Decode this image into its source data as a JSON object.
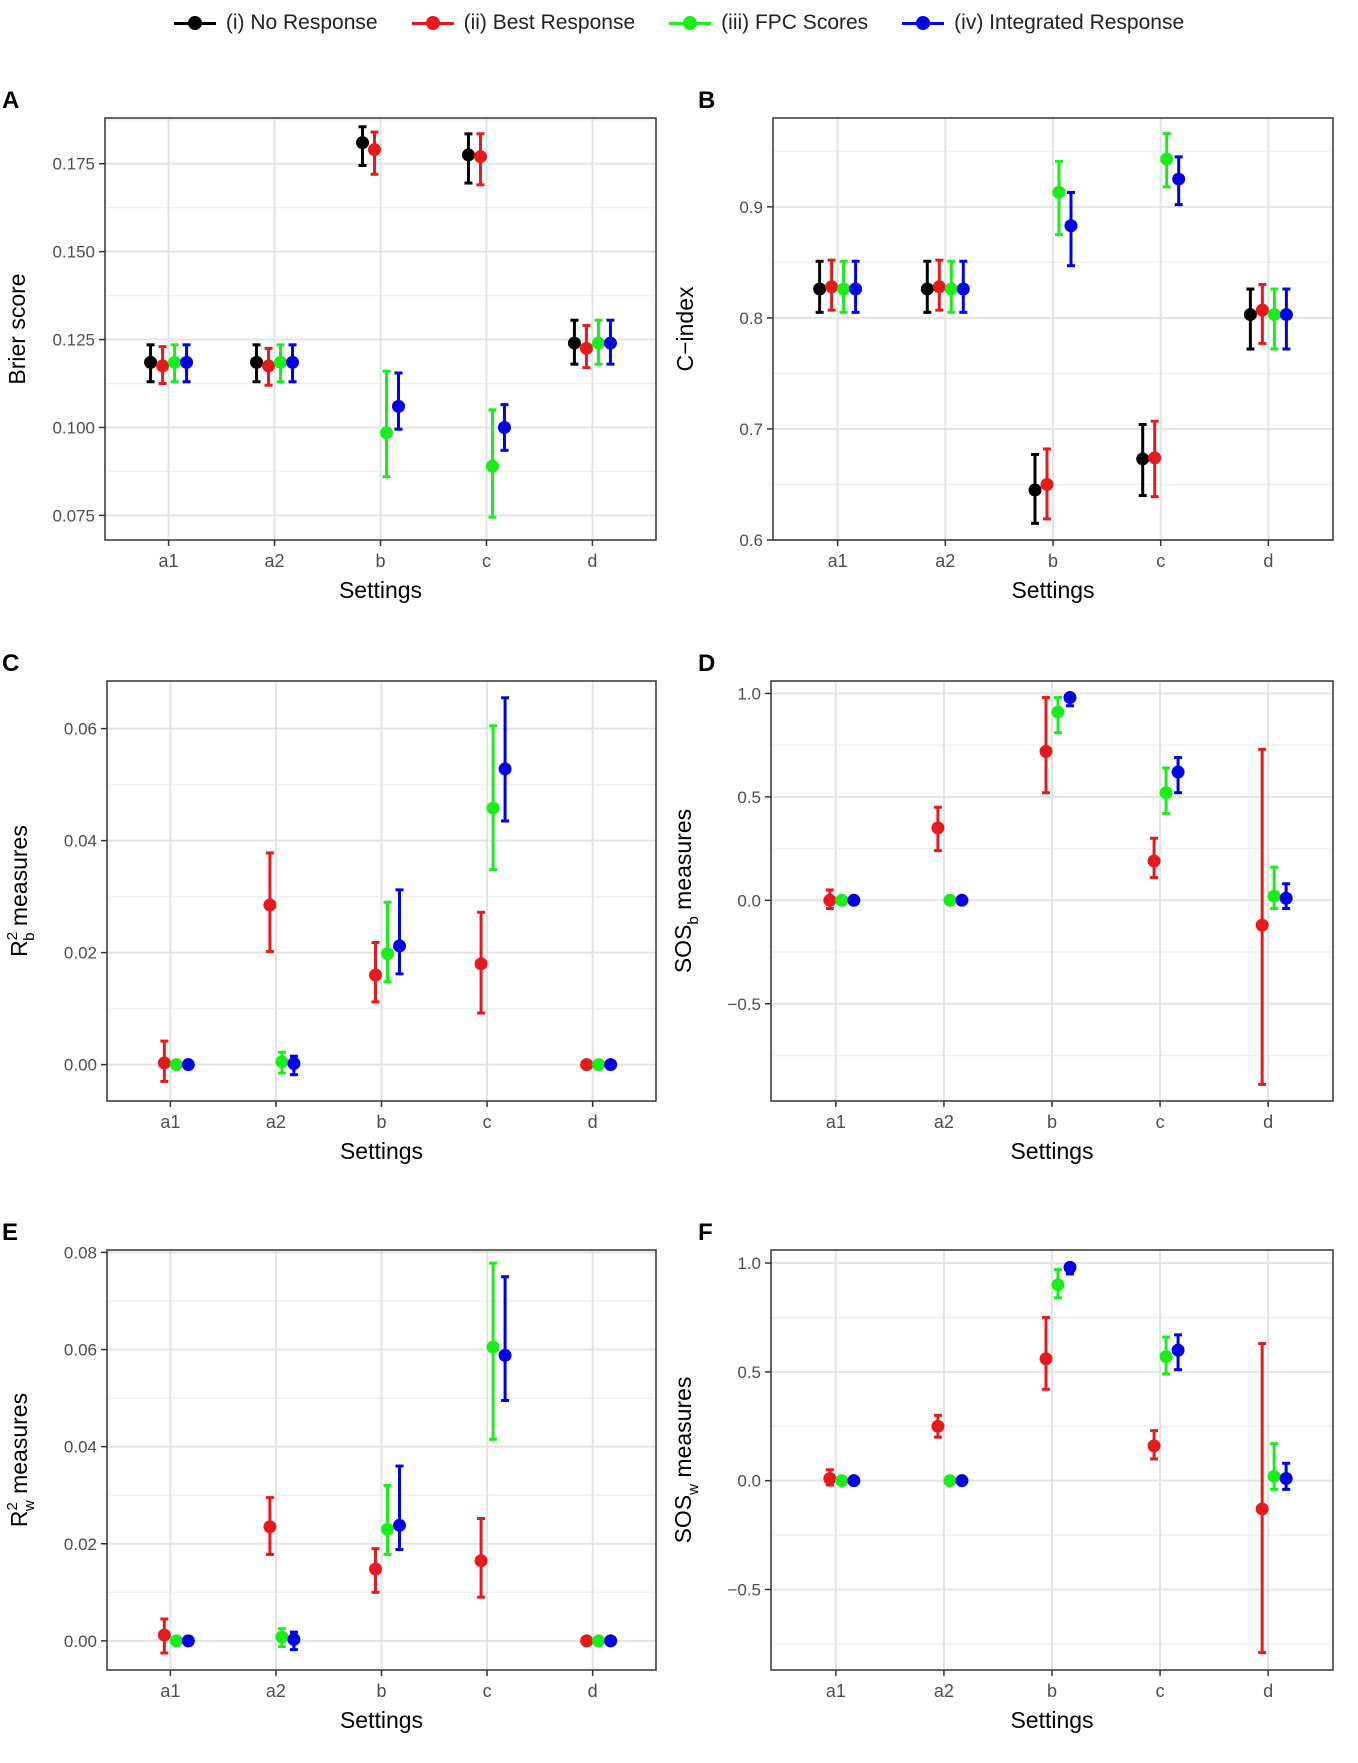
{
  "legend": {
    "items": [
      {
        "label": "(i) No Response",
        "color": "#000000"
      },
      {
        "label": "(ii) Best Response",
        "color": "#e41a1c"
      },
      {
        "label": "(iii) FPC Scores",
        "color": "#1aee1a"
      },
      {
        "label": "(iv) Integrated Response",
        "color": "#0000e6"
      }
    ]
  },
  "chart_data": [
    {
      "panel": "A",
      "type": "scatter",
      "error_bars": true,
      "xlabel": "Settings",
      "ylabel": "Brier score",
      "categories": [
        "a1",
        "a2",
        "b",
        "c",
        "d"
      ],
      "ylim": [
        0.068,
        0.188
      ],
      "yticks": [
        0.075,
        0.1,
        0.125,
        0.15,
        0.175
      ],
      "yticklabels": [
        "0.075",
        "0.100",
        "0.125",
        "0.150",
        "0.175"
      ],
      "series": [
        {
          "name": "(i) No Response",
          "values": [
            0.1185,
            0.1185,
            0.181,
            0.1775,
            0.124
          ],
          "lower": [
            0.113,
            0.113,
            0.1745,
            0.1695,
            0.118
          ],
          "upper": [
            0.1235,
            0.1235,
            0.1855,
            0.1835,
            0.1305
          ]
        },
        {
          "name": "(ii) Best Response",
          "values": [
            0.1175,
            0.1175,
            0.179,
            0.177,
            0.1225
          ],
          "lower": [
            0.1125,
            0.112,
            0.172,
            0.169,
            0.117
          ],
          "upper": [
            0.123,
            0.1225,
            0.184,
            0.1835,
            0.129
          ]
        },
        {
          "name": "(iii) FPC Scores",
          "values": [
            0.1185,
            0.1185,
            0.0985,
            0.089,
            0.124
          ],
          "lower": [
            0.113,
            0.113,
            0.086,
            0.0745,
            0.118
          ],
          "upper": [
            0.1235,
            0.1235,
            0.116,
            0.105,
            0.1305
          ]
        },
        {
          "name": "(iv) Integrated Response",
          "values": [
            0.1185,
            0.1185,
            0.106,
            0.1,
            0.124
          ],
          "lower": [
            0.113,
            0.113,
            0.0995,
            0.0935,
            0.118
          ],
          "upper": [
            0.1235,
            0.1235,
            0.1155,
            0.1065,
            0.1305
          ]
        }
      ]
    },
    {
      "panel": "B",
      "type": "scatter",
      "error_bars": true,
      "xlabel": "Settings",
      "ylabel": "C−index",
      "categories": [
        "a1",
        "a2",
        "b",
        "c",
        "d"
      ],
      "ylim": [
        0.6,
        0.98
      ],
      "yticks": [
        0.6,
        0.7,
        0.8,
        0.9
      ],
      "yticklabels": [
        "0.6",
        "0.7",
        "0.8",
        "0.9"
      ],
      "series": [
        {
          "name": "(i) No Response",
          "values": [
            0.826,
            0.826,
            0.645,
            0.673,
            0.803
          ],
          "lower": [
            0.805,
            0.805,
            0.615,
            0.64,
            0.772
          ],
          "upper": [
            0.851,
            0.851,
            0.677,
            0.704,
            0.826
          ]
        },
        {
          "name": "(ii) Best Response",
          "values": [
            0.828,
            0.828,
            0.65,
            0.674,
            0.807
          ],
          "lower": [
            0.807,
            0.807,
            0.619,
            0.639,
            0.777
          ],
          "upper": [
            0.852,
            0.852,
            0.682,
            0.707,
            0.83
          ]
        },
        {
          "name": "(iii) FPC Scores",
          "values": [
            0.826,
            0.826,
            0.913,
            0.943,
            0.803
          ],
          "lower": [
            0.805,
            0.805,
            0.875,
            0.918,
            0.772
          ],
          "upper": [
            0.851,
            0.851,
            0.941,
            0.966,
            0.826
          ]
        },
        {
          "name": "(iv) Integrated Response",
          "values": [
            0.826,
            0.826,
            0.883,
            0.925,
            0.803
          ],
          "lower": [
            0.805,
            0.805,
            0.847,
            0.902,
            0.772
          ],
          "upper": [
            0.851,
            0.851,
            0.913,
            0.945,
            0.826
          ]
        }
      ]
    },
    {
      "panel": "C",
      "type": "scatter",
      "error_bars": true,
      "xlabel": "Settings",
      "ylabel": "R",
      "ylabel_sup": "2",
      "ylabel_sub": "b",
      "ylabel_suffix": " measures",
      "categories": [
        "a1",
        "a2",
        "b",
        "c",
        "d"
      ],
      "ylim": [
        -0.0065,
        0.0685
      ],
      "yticks": [
        0,
        0.02,
        0.04,
        0.06
      ],
      "yticklabels": [
        "0.00",
        "0.02",
        "0.04",
        "0.06"
      ],
      "series": [
        {
          "name": "(i) No Response",
          "values": [
            null,
            null,
            null,
            null,
            null
          ],
          "lower": [
            null,
            null,
            null,
            null,
            null
          ],
          "upper": [
            null,
            null,
            null,
            null,
            null
          ]
        },
        {
          "name": "(ii) Best Response",
          "values": [
            0.0003,
            0.0285,
            0.016,
            0.018,
            0
          ],
          "lower": [
            -0.003,
            0.0202,
            0.0112,
            0.0092,
            0
          ],
          "upper": [
            0.0042,
            0.0378,
            0.0218,
            0.0272,
            0
          ]
        },
        {
          "name": "(iii) FPC Scores",
          "values": [
            0,
            0.0005,
            0.0198,
            0.0458,
            0
          ],
          "lower": [
            0,
            -0.0015,
            0.0148,
            0.0348,
            0
          ],
          "upper": [
            0,
            0.0022,
            0.029,
            0.0605,
            0
          ]
        },
        {
          "name": "(iv) Integrated Response",
          "values": [
            0,
            0.0002,
            0.0212,
            0.0528,
            0
          ],
          "lower": [
            0,
            -0.0018,
            0.0162,
            0.0435,
            0
          ],
          "upper": [
            0,
            0.0015,
            0.0312,
            0.0655,
            0
          ]
        }
      ]
    },
    {
      "panel": "D",
      "type": "scatter",
      "error_bars": true,
      "xlabel": "Settings",
      "ylabel": "SOS",
      "ylabel_sub": "b",
      "ylabel_suffix": " measures",
      "categories": [
        "a1",
        "a2",
        "b",
        "c",
        "d"
      ],
      "ylim": [
        -0.97,
        1.06
      ],
      "yticks": [
        -0.5,
        0,
        0.5,
        1
      ],
      "yticklabels": [
        "−0.5",
        "0.0",
        "0.5",
        "1.0"
      ],
      "series": [
        {
          "name": "(i) No Response",
          "values": [
            null,
            null,
            null,
            null,
            null
          ],
          "lower": [
            null,
            null,
            null,
            null,
            null
          ],
          "upper": [
            null,
            null,
            null,
            null,
            null
          ]
        },
        {
          "name": "(ii) Best Response",
          "values": [
            0.0,
            0.35,
            0.72,
            0.19,
            -0.12
          ],
          "lower": [
            -0.04,
            0.24,
            0.52,
            0.11,
            -0.89
          ],
          "upper": [
            0.05,
            0.45,
            0.98,
            0.3,
            0.73
          ]
        },
        {
          "name": "(iii) FPC Scores",
          "values": [
            0.0,
            0.0,
            0.91,
            0.52,
            0.02
          ],
          "lower": [
            0,
            0,
            0.81,
            0.42,
            -0.04
          ],
          "upper": [
            0,
            0,
            0.98,
            0.64,
            0.16
          ]
        },
        {
          "name": "(iv) Integrated Response",
          "values": [
            0.0,
            0.0,
            0.98,
            0.62,
            0.01
          ],
          "lower": [
            0,
            0,
            0.94,
            0.52,
            -0.04
          ],
          "upper": [
            0,
            0,
            0.99,
            0.69,
            0.08
          ]
        }
      ]
    },
    {
      "panel": "E",
      "type": "scatter",
      "error_bars": true,
      "xlabel": "Settings",
      "ylabel": "R",
      "ylabel_sup": "2",
      "ylabel_sub": "w",
      "ylabel_suffix": " measures",
      "categories": [
        "a1",
        "a2",
        "b",
        "c",
        "d"
      ],
      "ylim": [
        -0.006,
        0.0805
      ],
      "yticks": [
        0,
        0.02,
        0.04,
        0.06,
        0.08
      ],
      "yticklabels": [
        "0.00",
        "0.02",
        "0.04",
        "0.06",
        "0.08"
      ],
      "series": [
        {
          "name": "(i) No Response",
          "values": [
            null,
            null,
            null,
            null,
            null
          ],
          "lower": [
            null,
            null,
            null,
            null,
            null
          ],
          "upper": [
            null,
            null,
            null,
            null,
            null
          ]
        },
        {
          "name": "(ii) Best Response",
          "values": [
            0.0012,
            0.0235,
            0.0148,
            0.0165,
            0
          ],
          "lower": [
            -0.0025,
            0.0178,
            0.01,
            0.009,
            0
          ],
          "upper": [
            0.0045,
            0.0295,
            0.019,
            0.0252,
            0
          ]
        },
        {
          "name": "(iii) FPC Scores",
          "values": [
            0,
            0.0008,
            0.023,
            0.0605,
            0
          ],
          "lower": [
            0,
            -0.0012,
            0.0178,
            0.0415,
            0
          ],
          "upper": [
            0,
            0.0025,
            0.032,
            0.0778,
            0
          ]
        },
        {
          "name": "(iv) Integrated Response",
          "values": [
            0,
            0.0003,
            0.0238,
            0.0588,
            0
          ],
          "lower": [
            0,
            -0.0018,
            0.0188,
            0.0495,
            0
          ],
          "upper": [
            0,
            0.0018,
            0.036,
            0.075,
            0
          ]
        }
      ]
    },
    {
      "panel": "F",
      "type": "scatter",
      "error_bars": true,
      "xlabel": "Settings",
      "ylabel": "SOS",
      "ylabel_sub": "w",
      "ylabel_suffix": " measures",
      "categories": [
        "a1",
        "a2",
        "b",
        "c",
        "d"
      ],
      "ylim": [
        -0.87,
        1.06
      ],
      "yticks": [
        -0.5,
        0,
        0.5,
        1
      ],
      "yticklabels": [
        "−0.5",
        "0.0",
        "0.5",
        "1.0"
      ],
      "series": [
        {
          "name": "(i) No Response",
          "values": [
            null,
            null,
            null,
            null,
            null
          ],
          "lower": [
            null,
            null,
            null,
            null,
            null
          ],
          "upper": [
            null,
            null,
            null,
            null,
            null
          ]
        },
        {
          "name": "(ii) Best Response",
          "values": [
            0.01,
            0.25,
            0.56,
            0.16,
            -0.13
          ],
          "lower": [
            -0.02,
            0.2,
            0.42,
            0.1,
            -0.79
          ],
          "upper": [
            0.05,
            0.3,
            0.75,
            0.23,
            0.63
          ]
        },
        {
          "name": "(iii) FPC Scores",
          "values": [
            0.0,
            0.0,
            0.9,
            0.57,
            0.02
          ],
          "lower": [
            0,
            0,
            0.84,
            0.49,
            -0.04
          ],
          "upper": [
            0,
            0,
            0.97,
            0.66,
            0.17
          ]
        },
        {
          "name": "(iv) Integrated Response",
          "values": [
            0.0,
            0.0,
            0.98,
            0.6,
            0.01
          ],
          "lower": [
            0,
            0,
            0.95,
            0.51,
            -0.04
          ],
          "upper": [
            0,
            0,
            0.99,
            0.67,
            0.08
          ]
        }
      ]
    }
  ]
}
